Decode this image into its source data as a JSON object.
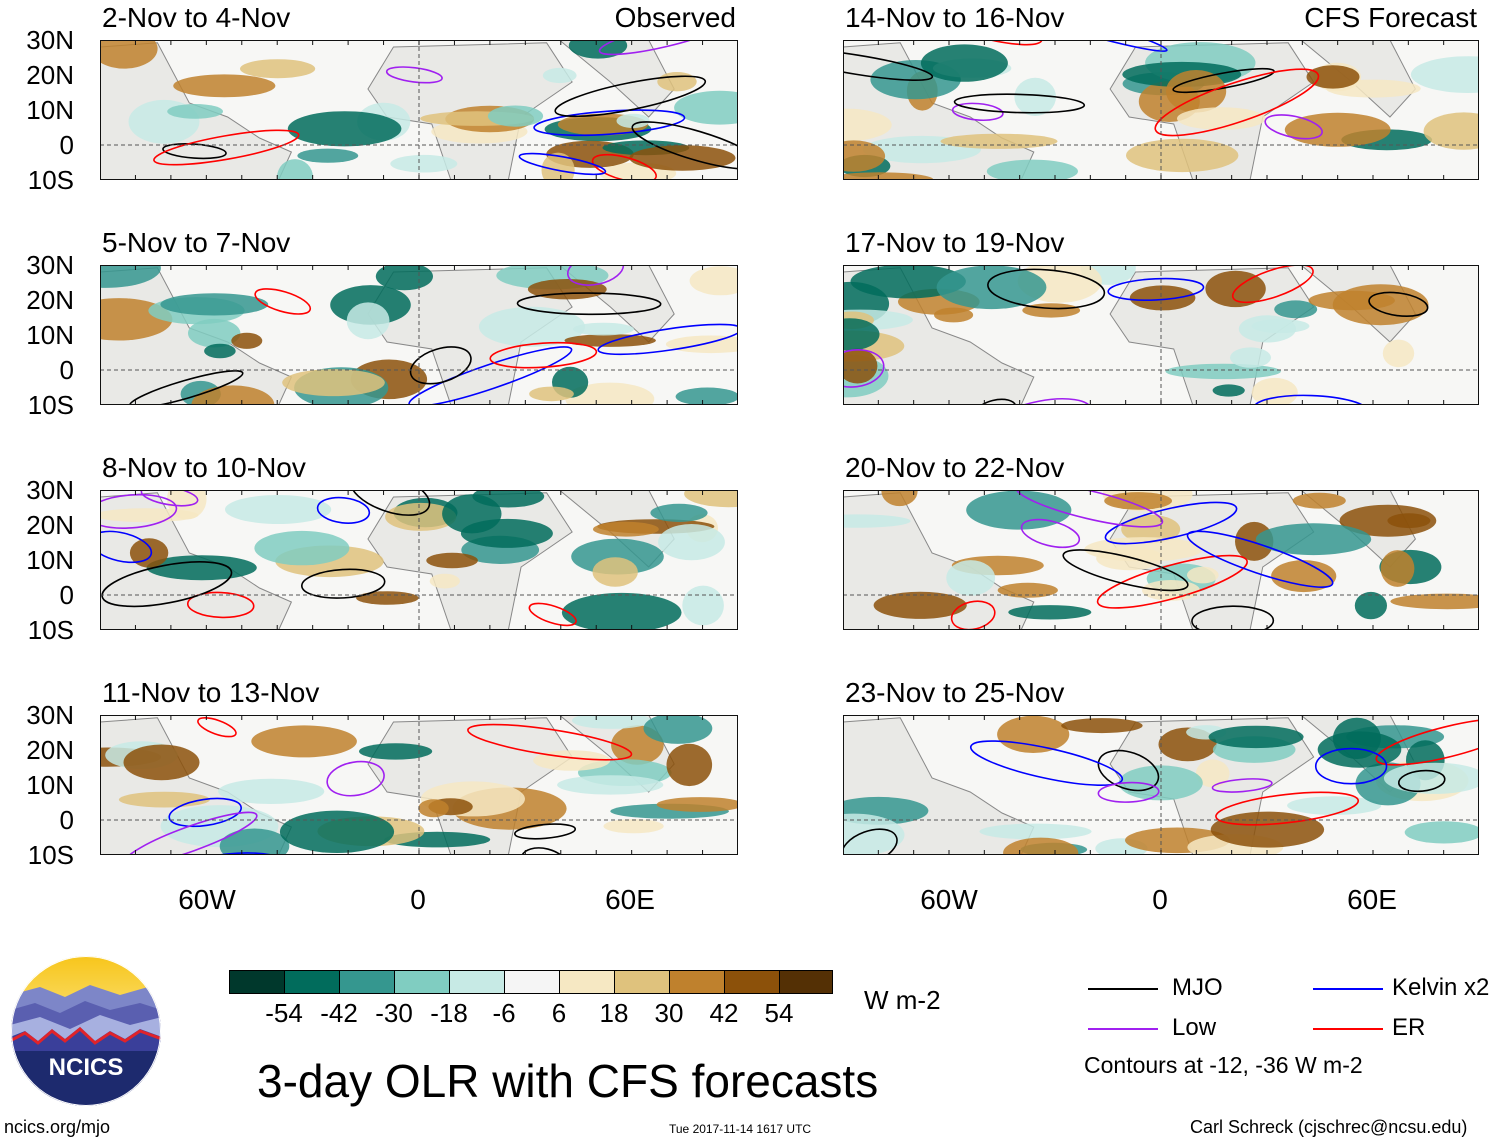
{
  "panels": [
    {
      "title": "2-Nov to 4-Nov",
      "label": "Observed"
    },
    {
      "title": "14-Nov to 16-Nov",
      "label": "CFS Forecast"
    },
    {
      "title": "5-Nov to 7-Nov",
      "label": ""
    },
    {
      "title": "17-Nov to 19-Nov",
      "label": ""
    },
    {
      "title": "8-Nov to 10-Nov",
      "label": ""
    },
    {
      "title": "20-Nov to 22-Nov",
      "label": ""
    },
    {
      "title": "11-Nov to 13-Nov",
      "label": ""
    },
    {
      "title": "23-Nov to 25-Nov",
      "label": ""
    }
  ],
  "lat_labels": [
    "30N",
    "20N",
    "10N",
    "0",
    "10S"
  ],
  "lon_labels": [
    "60W",
    "0",
    "60E"
  ],
  "colorbar": {
    "colors": [
      "#00382c",
      "#016c5c",
      "#35978f",
      "#80cdc1",
      "#c7eae5",
      "#f5f5f5",
      "#f6e8c3",
      "#dfc27d",
      "#bf812d",
      "#8c510a",
      "#543005"
    ],
    "labels": [
      "-54",
      "-42",
      "-30",
      "-18",
      "-6",
      "6",
      "18",
      "30",
      "42",
      "54"
    ],
    "units": "W m-2"
  },
  "legend": {
    "items": [
      {
        "name": "MJO",
        "color": "#000000"
      },
      {
        "name": "Kelvin x2",
        "color": "#0000ff"
      },
      {
        "name": "Low",
        "color": "#a020f0"
      },
      {
        "name": "ER",
        "color": "#ff0000"
      }
    ],
    "note": "Contours at -12, -36 W m-2"
  },
  "logo_text": "NCICS",
  "main_title": "3-day OLR with CFS forecasts",
  "footer": {
    "url": "ncics.org/mjo",
    "timestamp": "Tue 2017-11-14 1617 UTC",
    "credit": "Carl Schreck (cjschrec@ncsu.edu)"
  }
}
